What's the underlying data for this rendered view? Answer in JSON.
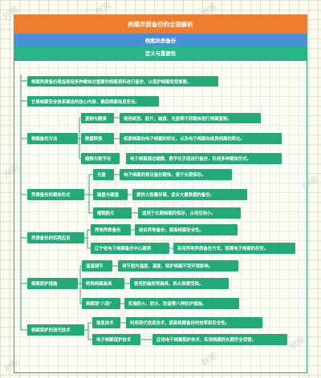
{
  "title": "档案异质备份的全面解析",
  "subtitle": "档案异质备份",
  "section": "定义与重要性",
  "intro": [
    "档案异质备份是指使用多种载体对重要的档案资料进行备份，以保护档案免受损害。",
    "它是档案安全体系建设的核心内容，确保档案信息安全。"
  ],
  "groups": [
    {
      "label": "档案备份方法",
      "items": [
        {
          "label": "复制与翻录",
          "detail": "使用纸张、胶片、磁盘、光盘等不同载体进行档案复制。"
        },
        {
          "label": "数据转换",
          "detail": "纸质档案向电子档案的转化，以及电子档案向纸质档案的转化。"
        },
        {
          "label": "缩微与数字化",
          "detail": "电子档案通过缩微、数字化手段进行备份，形成多种载体形式。"
        }
      ]
    },
    {
      "label": "异质备份的载体形式",
      "items": [
        {
          "label": "光盘",
          "detail": "电子档案的常见备份载体，便于长期保存。"
        },
        {
          "label": "磁盘与硬盘",
          "detail": "提供大容量存储，适合大量数据的备份。"
        },
        {
          "label": "缩微胶片",
          "detail": "适用于长期档案的保存，占用空间小。"
        }
      ]
    },
    {
      "label": "异质备份的实践应用",
      "items": [
        {
          "label": "异地异质备份",
          "detail": "结合异地备份，提高档案安全性。"
        },
        {
          "label": "辽宁省电子档案备份中心案例",
          "detail": "采用异地异质备份方式，保障电子档案的存安。"
        }
      ]
    },
    {
      "label": "档案保护措施",
      "items": [
        {
          "label": "温湿调节",
          "detail": "调节室内温度、湿度，保护档案不受环境影响。"
        },
        {
          "label": "特殊档案装具",
          "detail": "使用防磁柜等装具，防止档案受损。"
        },
        {
          "label": "档案馆\"八防\"",
          "detail": "实施防火、防水、防盗等八种防护措施。"
        }
      ]
    },
    {
      "label": "档案保护的现代技术",
      "items": [
        {
          "label": "信息技术",
          "detail": "利用现代信息技术，提高档案备份的效率和安全性。"
        },
        {
          "label": "电子档案保护技术",
          "detail": "应用电子档案保护技术，实现档案的长期安全保管。"
        }
      ]
    }
  ],
  "watermark": "树图"
}
